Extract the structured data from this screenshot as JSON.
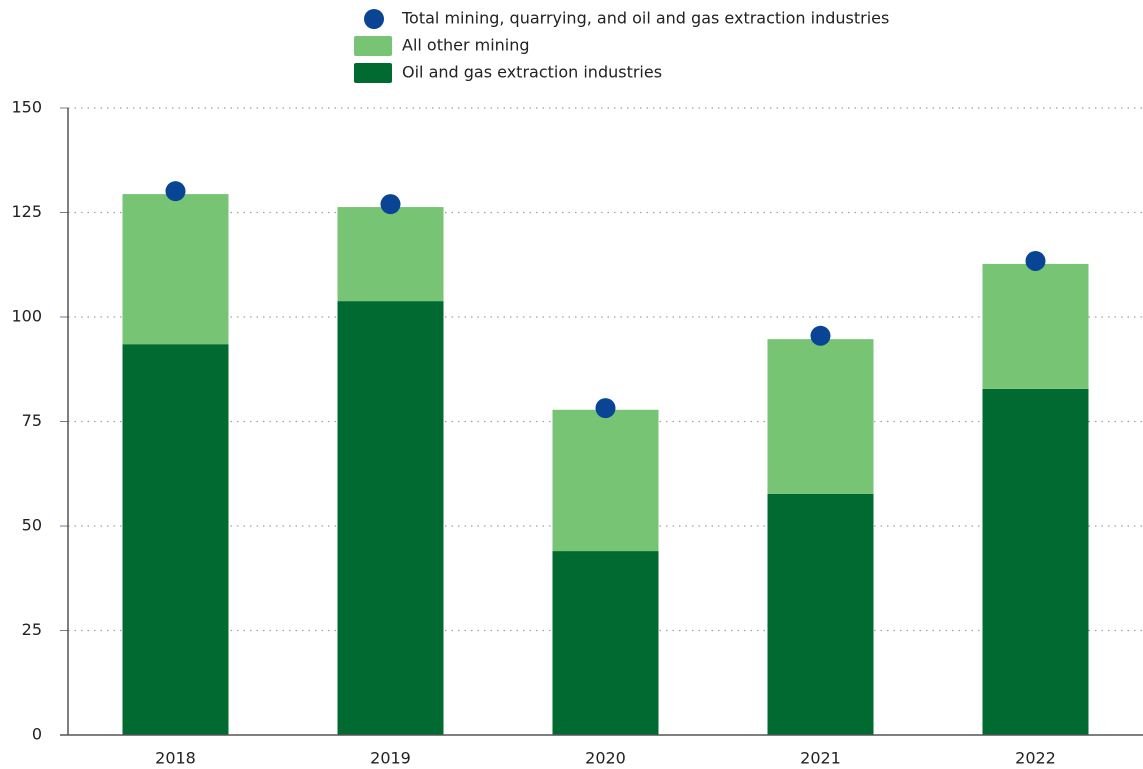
{
  "chart_data": {
    "type": "bar",
    "stacked": true,
    "categories": [
      "2018",
      "2019",
      "2020",
      "2021",
      "2022"
    ],
    "series": [
      {
        "name": "Oil and gas extraction industries",
        "color": "#006a30",
        "values": [
          93.5,
          103.8,
          44,
          57.7,
          82.8
        ]
      },
      {
        "name": "All other mining",
        "color": "#76c474",
        "values": [
          35.9,
          22.5,
          33.8,
          37,
          29.9
        ]
      },
      {
        "name": "Total mining, quarrying, and oil and gas extraction industries",
        "color": "#0a4595",
        "type": "dot",
        "values": [
          130.1,
          127,
          78.2,
          95.5,
          113.4
        ]
      }
    ],
    "ylim": [
      0,
      150
    ],
    "yticks": [
      0,
      25,
      50,
      75,
      100,
      125,
      150
    ],
    "grid": true
  }
}
